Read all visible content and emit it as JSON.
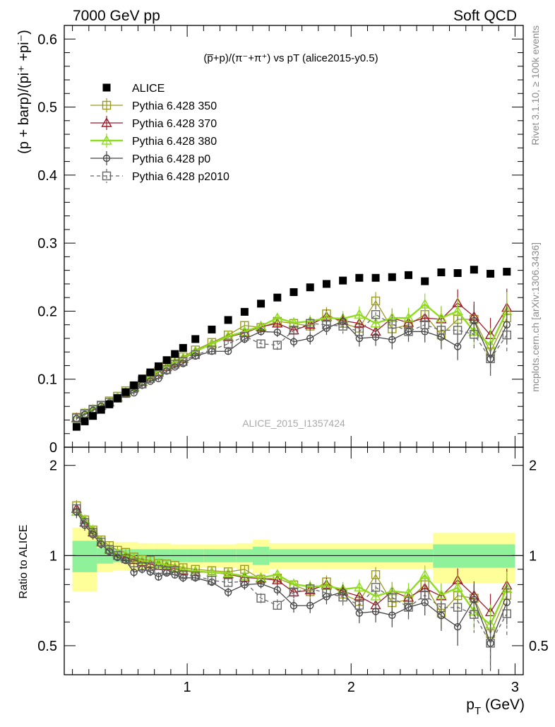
{
  "header": {
    "left_label": "7000 GeV pp",
    "right_label": "Soft QCD"
  },
  "side_labels": {
    "rivet": "Rivet 3.1.10, ≥ 100k events",
    "mcplots": "mcplots.cern.ch [arXiv:1306.3436]"
  },
  "chart_data": [
    {
      "type": "scatter",
      "title": "(p̅+p)/(π⁻+π⁺) vs pT (alice2015-y0.5)",
      "ylabel": "(p + barp)/(pi⁺ +pi⁻)",
      "xlabel": "",
      "watermark": "ALICE_2015_I1357424",
      "xlim": [
        0.25,
        3.05
      ],
      "ylim": [
        0,
        0.62
      ],
      "yticks": [
        0,
        0.1,
        0.2,
        0.3,
        0.4,
        0.5,
        0.6
      ],
      "ytick_labels": [
        "0",
        "0.1",
        "0.2",
        "0.3",
        "0.4",
        "0.5",
        "0.6"
      ],
      "legend_position": "top-left",
      "x": [
        0.325,
        0.375,
        0.425,
        0.475,
        0.525,
        0.575,
        0.625,
        0.675,
        0.725,
        0.775,
        0.825,
        0.875,
        0.925,
        0.975,
        1.05,
        1.15,
        1.25,
        1.35,
        1.45,
        1.55,
        1.65,
        1.75,
        1.85,
        1.95,
        2.05,
        2.15,
        2.25,
        2.35,
        2.45,
        2.55,
        2.65,
        2.75,
        2.85,
        2.95
      ],
      "series": [
        {
          "name": "ALICE",
          "color": "#000000",
          "marker": "filled-square",
          "line": "none",
          "values": [
            0.03,
            0.038,
            0.046,
            0.055,
            0.063,
            0.072,
            0.081,
            0.091,
            0.101,
            0.11,
            0.119,
            0.128,
            0.137,
            0.146,
            0.159,
            0.173,
            0.187,
            0.199,
            0.211,
            0.22,
            0.228,
            0.235,
            0.24,
            0.245,
            0.249,
            0.249,
            0.25,
            0.253,
            0.244,
            0.257,
            0.256,
            0.261,
            0.255,
            0.258
          ]
        },
        {
          "name": "Pythia 6.428 350",
          "color": "#9a9a20",
          "marker": "open-square",
          "line": "solid",
          "values": [
            0.044,
            0.05,
            0.056,
            0.062,
            0.068,
            0.075,
            0.083,
            0.09,
            0.098,
            0.106,
            0.112,
            0.12,
            0.127,
            0.133,
            0.143,
            0.154,
            0.165,
            0.179,
            0.176,
            0.185,
            0.182,
            0.178,
            0.196,
            0.182,
            0.175,
            0.215,
            0.174,
            0.18,
            0.195,
            0.165,
            0.188,
            0.188,
            0.14,
            0.19
          ],
          "err": [
            0.002,
            0.002,
            0.002,
            0.002,
            0.002,
            0.002,
            0.002,
            0.003,
            0.003,
            0.003,
            0.003,
            0.003,
            0.003,
            0.004,
            0.004,
            0.004,
            0.005,
            0.006,
            0.006,
            0.007,
            0.008,
            0.009,
            0.01,
            0.011,
            0.012,
            0.013,
            0.014,
            0.015,
            0.016,
            0.018,
            0.02,
            0.022,
            0.025,
            0.028
          ]
        },
        {
          "name": "Pythia 6.428 370",
          "color": "#9b1b2a",
          "marker": "open-triangle",
          "line": "solid",
          "values": [
            0.043,
            0.049,
            0.055,
            0.061,
            0.066,
            0.073,
            0.08,
            0.088,
            0.096,
            0.103,
            0.11,
            0.118,
            0.124,
            0.13,
            0.14,
            0.152,
            0.162,
            0.168,
            0.177,
            0.182,
            0.172,
            0.18,
            0.192,
            0.186,
            0.182,
            0.17,
            0.19,
            0.183,
            0.19,
            0.188,
            0.212,
            0.192,
            0.165,
            0.205
          ],
          "err": [
            0.002,
            0.002,
            0.002,
            0.002,
            0.002,
            0.002,
            0.002,
            0.003,
            0.003,
            0.003,
            0.003,
            0.003,
            0.003,
            0.004,
            0.004,
            0.004,
            0.005,
            0.006,
            0.006,
            0.007,
            0.008,
            0.009,
            0.01,
            0.011,
            0.012,
            0.013,
            0.014,
            0.015,
            0.016,
            0.018,
            0.02,
            0.022,
            0.025,
            0.028
          ]
        },
        {
          "name": "Pythia 6.428 380",
          "color": "#8fdc1e",
          "marker": "open-triangle",
          "line": "solid-thick",
          "values": [
            0.042,
            0.05,
            0.056,
            0.061,
            0.066,
            0.073,
            0.081,
            0.089,
            0.097,
            0.104,
            0.112,
            0.119,
            0.125,
            0.131,
            0.141,
            0.152,
            0.163,
            0.17,
            0.178,
            0.19,
            0.183,
            0.185,
            0.19,
            0.189,
            0.195,
            0.182,
            0.19,
            0.19,
            0.21,
            0.19,
            0.2,
            0.17,
            0.15,
            0.2
          ],
          "err": [
            0.002,
            0.002,
            0.002,
            0.002,
            0.002,
            0.002,
            0.002,
            0.003,
            0.003,
            0.003,
            0.003,
            0.003,
            0.003,
            0.004,
            0.004,
            0.004,
            0.005,
            0.006,
            0.006,
            0.007,
            0.008,
            0.009,
            0.01,
            0.011,
            0.012,
            0.013,
            0.014,
            0.015,
            0.016,
            0.018,
            0.02,
            0.022,
            0.025,
            0.028
          ]
        },
        {
          "name": "Pythia 6.428 p0",
          "color": "#444444",
          "marker": "open-circle",
          "line": "solid",
          "values": [
            0.042,
            0.048,
            0.054,
            0.06,
            0.065,
            0.071,
            0.078,
            0.08,
            0.091,
            0.097,
            0.101,
            0.112,
            0.118,
            0.123,
            0.134,
            0.141,
            0.141,
            0.159,
            0.17,
            0.169,
            0.155,
            0.16,
            0.175,
            0.185,
            0.16,
            0.162,
            0.158,
            0.17,
            0.17,
            0.162,
            0.148,
            0.186,
            0.13,
            0.18
          ],
          "err": [
            0.002,
            0.002,
            0.002,
            0.002,
            0.002,
            0.002,
            0.002,
            0.003,
            0.003,
            0.003,
            0.003,
            0.003,
            0.003,
            0.004,
            0.004,
            0.004,
            0.005,
            0.006,
            0.006,
            0.007,
            0.008,
            0.009,
            0.01,
            0.011,
            0.012,
            0.013,
            0.014,
            0.015,
            0.016,
            0.018,
            0.02,
            0.022,
            0.025,
            0.028
          ]
        },
        {
          "name": "Pythia 6.428 p2010",
          "color": "#666666",
          "marker": "open-square",
          "line": "dashed",
          "values": [
            0.043,
            0.049,
            0.055,
            0.061,
            0.066,
            0.072,
            0.079,
            0.086,
            0.093,
            0.101,
            0.107,
            0.114,
            0.122,
            0.126,
            0.136,
            0.143,
            0.152,
            0.163,
            0.152,
            0.15,
            0.172,
            0.182,
            0.18,
            0.178,
            0.17,
            0.195,
            0.181,
            0.17,
            0.18,
            0.172,
            0.172,
            0.166,
            0.13,
            0.165
          ],
          "err": [
            0.002,
            0.002,
            0.002,
            0.002,
            0.002,
            0.002,
            0.002,
            0.003,
            0.003,
            0.003,
            0.003,
            0.003,
            0.003,
            0.004,
            0.004,
            0.004,
            0.005,
            0.006,
            0.006,
            0.007,
            0.008,
            0.009,
            0.01,
            0.011,
            0.012,
            0.013,
            0.014,
            0.015,
            0.016,
            0.018,
            0.02,
            0.022,
            0.025,
            0.028
          ]
        }
      ]
    },
    {
      "type": "line",
      "title": "",
      "ylabel": "Ratio to ALICE",
      "xlabel": "p_T (GeV)",
      "xlim": [
        0.25,
        3.05
      ],
      "ylim": [
        0.4,
        2.3
      ],
      "yticks": [
        0.5,
        1,
        2
      ],
      "ytick_labels": [
        "0.5",
        "1",
        "2"
      ],
      "xticks": [
        1,
        2,
        3
      ],
      "xtick_labels": [
        "1",
        "2",
        "3"
      ],
      "band_edges": [
        0.3,
        0.45,
        0.55,
        0.6,
        0.7,
        0.8,
        0.9,
        1.0,
        1.1,
        1.2,
        1.3,
        1.4,
        1.5,
        2.5,
        3.0
      ],
      "band_inner_halfwidth": [
        0.12,
        0.06,
        0.05,
        0.05,
        0.05,
        0.05,
        0.05,
        0.05,
        0.05,
        0.05,
        0.05,
        0.07,
        0.05,
        0.09
      ],
      "band_outer_halfwidth": [
        0.24,
        0.12,
        0.11,
        0.11,
        0.1,
        0.1,
        0.09,
        0.09,
        0.09,
        0.09,
        0.1,
        0.13,
        0.1,
        0.19
      ],
      "reference_line": 1
    }
  ]
}
